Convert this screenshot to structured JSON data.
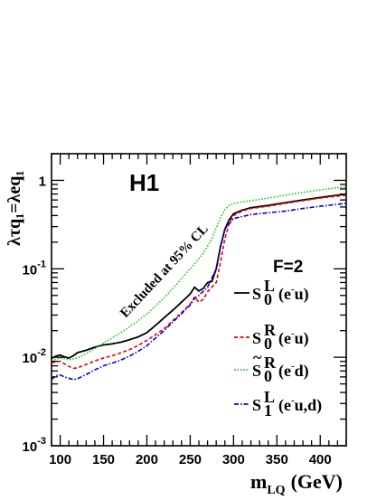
{
  "chart_data": {
    "type": "line",
    "title": "H1",
    "xlabel": "m",
    "xlabel_sub": "LQ",
    "xlabel_unit": "(GeV)",
    "ylabel": "λτq₁=λeq₁",
    "xlim": [
      90,
      430
    ],
    "ylim": [
      0.001,
      2
    ],
    "yscale": "log",
    "x_ticks": [
      100,
      150,
      200,
      250,
      300,
      350,
      400
    ],
    "x_tick_labels": [
      "100",
      "150",
      "200",
      "250",
      "300",
      "350",
      "400"
    ],
    "y_ticks": [
      0.001,
      0.01,
      0.1,
      1
    ],
    "y_tick_labels": [
      {
        "base": "10",
        "exp": "-3"
      },
      {
        "base": "10",
        "exp": "-2"
      },
      {
        "base": "10",
        "exp": "-1"
      },
      {
        "base": "1",
        "exp": ""
      }
    ],
    "annotation": "Excluded at 95% CL",
    "fermion_label": "F=2",
    "series": [
      {
        "name": "S0L (e-u)",
        "legend": {
          "main": "S",
          "sub": "0",
          "sup": "L",
          "pre": "(e",
          "pre_sup": "-",
          "post": "u)"
        },
        "color": "#000000",
        "style": "solid",
        "x": [
          90,
          95,
          100,
          105,
          110,
          115,
          120,
          130,
          140,
          150,
          160,
          170,
          180,
          190,
          200,
          210,
          220,
          230,
          240,
          250,
          255,
          260,
          265,
          270,
          275,
          280,
          285,
          290,
          295,
          300,
          310,
          320,
          340,
          360,
          380,
          400,
          430
        ],
        "y": [
          0.0097,
          0.0103,
          0.0106,
          0.0101,
          0.0098,
          0.0104,
          0.0113,
          0.012,
          0.013,
          0.0138,
          0.0142,
          0.0148,
          0.0158,
          0.017,
          0.019,
          0.023,
          0.028,
          0.034,
          0.042,
          0.052,
          0.062,
          0.056,
          0.06,
          0.07,
          0.072,
          0.1,
          0.18,
          0.28,
          0.36,
          0.42,
          0.46,
          0.49,
          0.52,
          0.56,
          0.6,
          0.64,
          0.7
        ]
      },
      {
        "name": "S0R (e-u)",
        "legend": {
          "main": "S",
          "sub": "0",
          "sup": "R",
          "pre": "(e",
          "pre_sup": "-",
          "post": "u)"
        },
        "color": "#ee0000",
        "style": "dashed",
        "x": [
          90,
          100,
          110,
          115,
          120,
          130,
          140,
          150,
          160,
          170,
          180,
          190,
          200,
          210,
          220,
          230,
          240,
          250,
          255,
          260,
          265,
          270,
          280,
          285,
          290,
          295,
          300,
          310,
          320,
          340,
          360,
          380,
          400,
          430
        ],
        "y": [
          0.0087,
          0.009,
          0.0079,
          0.0075,
          0.0076,
          0.0083,
          0.0091,
          0.0098,
          0.0104,
          0.0112,
          0.0122,
          0.0136,
          0.0155,
          0.018,
          0.021,
          0.026,
          0.032,
          0.04,
          0.048,
          0.042,
          0.045,
          0.055,
          0.07,
          0.12,
          0.22,
          0.33,
          0.4,
          0.45,
          0.48,
          0.51,
          0.55,
          0.59,
          0.63,
          0.68
        ]
      },
      {
        "name": "S~0R (e-d)",
        "legend": {
          "main": "S",
          "sub": "0",
          "sup": "R",
          "tilde": true,
          "pre": "(e",
          "pre_sup": "-",
          "post": "d)"
        },
        "color": "#22cc22",
        "style": "dotted",
        "x": [
          90,
          100,
          110,
          120,
          130,
          140,
          150,
          160,
          170,
          180,
          190,
          200,
          210,
          220,
          230,
          240,
          250,
          260,
          265,
          270,
          275,
          280,
          285,
          290,
          295,
          300,
          320,
          340,
          360,
          380,
          400,
          430
        ],
        "y": [
          0.0092,
          0.0098,
          0.0094,
          0.0098,
          0.011,
          0.0125,
          0.0145,
          0.0165,
          0.019,
          0.022,
          0.026,
          0.031,
          0.038,
          0.047,
          0.06,
          0.078,
          0.1,
          0.13,
          0.15,
          0.18,
          0.22,
          0.29,
          0.38,
          0.47,
          0.52,
          0.55,
          0.59,
          0.63,
          0.68,
          0.73,
          0.78,
          0.85
        ]
      },
      {
        "name": "S1L (e-u,d)",
        "legend": {
          "main": "S",
          "sub": "1",
          "sup": "L",
          "pre": "(e",
          "pre_sup": "-",
          "post": "u,d)"
        },
        "color": "#0000dd",
        "style": "dashdot",
        "x": [
          90,
          95,
          100,
          105,
          110,
          115,
          120,
          130,
          140,
          150,
          160,
          170,
          180,
          190,
          200,
          210,
          220,
          230,
          240,
          250,
          255,
          260,
          270,
          280,
          285,
          290,
          300,
          320,
          340,
          360,
          380,
          400,
          430
        ],
        "y": [
          0.0056,
          0.0062,
          0.0063,
          0.006,
          0.0058,
          0.0056,
          0.0057,
          0.0064,
          0.0072,
          0.008,
          0.0086,
          0.0093,
          0.0103,
          0.0117,
          0.0135,
          0.0165,
          0.02,
          0.025,
          0.031,
          0.039,
          0.046,
          0.05,
          0.062,
          0.1,
          0.18,
          0.28,
          0.37,
          0.41,
          0.43,
          0.45,
          0.48,
          0.51,
          0.55
        ]
      }
    ]
  }
}
